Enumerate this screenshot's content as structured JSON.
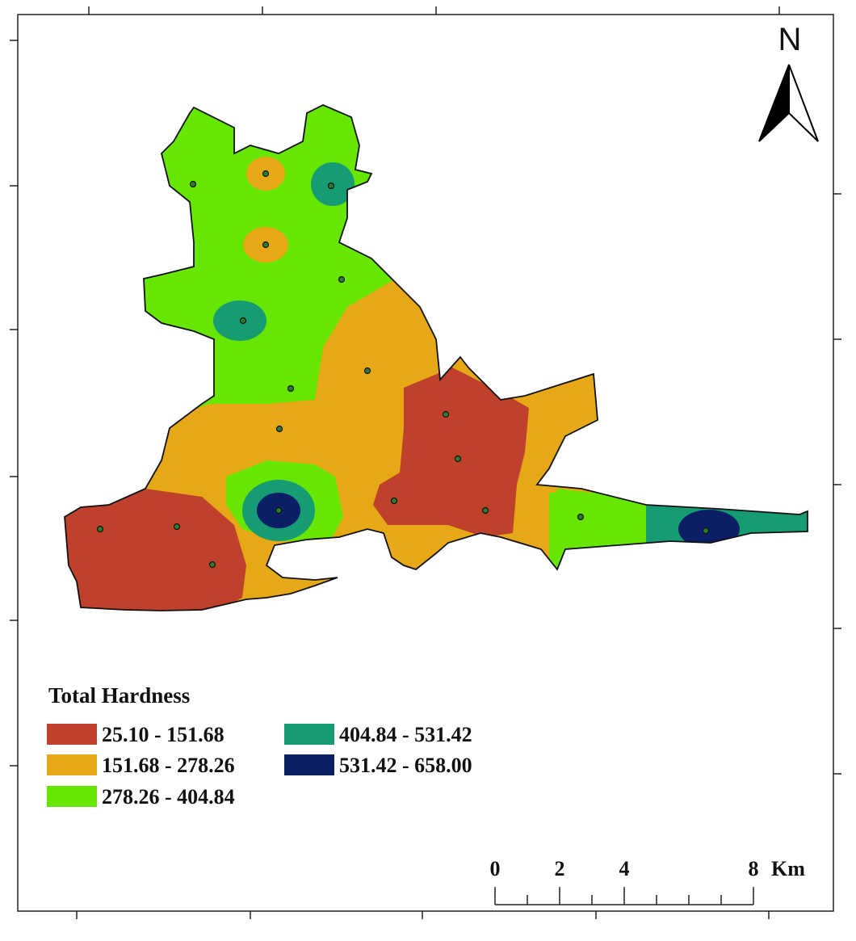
{
  "legend": {
    "title": "Total Hardness",
    "items": [
      {
        "label": "25.10 - 151.68",
        "color": "#c0412b"
      },
      {
        "label": "151.68 - 278.26",
        "color": "#e6a817"
      },
      {
        "label": "278.26 - 404.84",
        "color": "#66e600"
      },
      {
        "label": "404.84 - 531.42",
        "color": "#169b73"
      },
      {
        "label": "531.42 - 658.00",
        "color": "#0b1e66"
      }
    ]
  },
  "north_arrow": {
    "label": "N"
  },
  "scale_bar": {
    "ticks": [
      0,
      2,
      4,
      8
    ],
    "unit": "Km"
  }
}
